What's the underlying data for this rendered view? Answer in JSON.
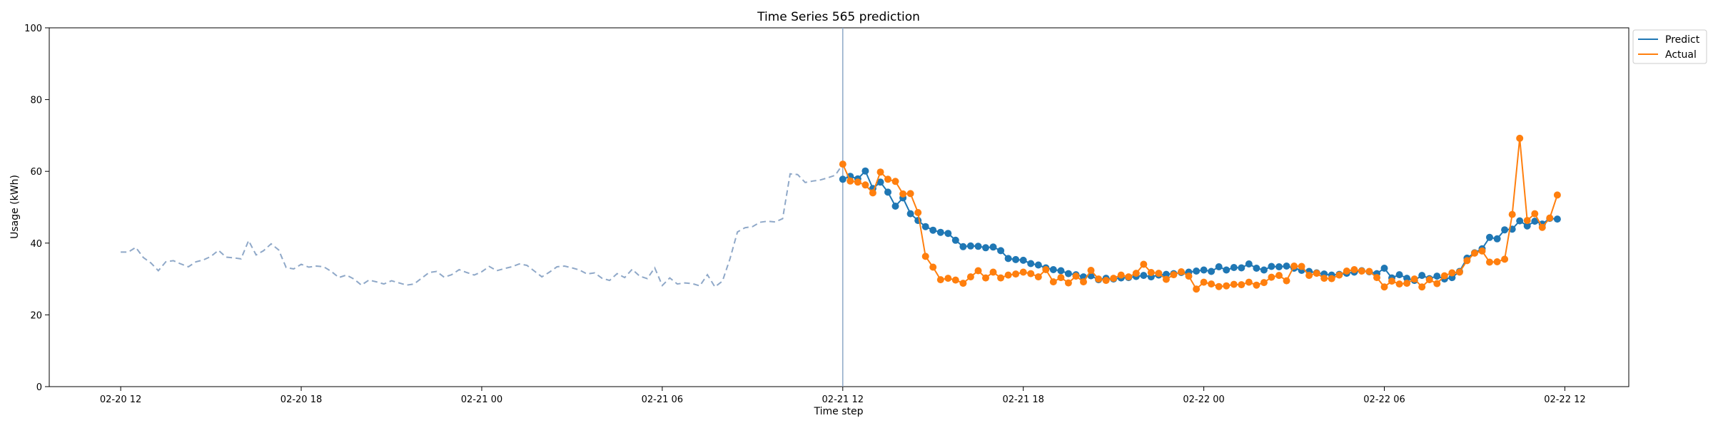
{
  "chart_data": {
    "type": "line",
    "title": "Time Series 565 prediction",
    "xlabel": "Time step",
    "ylabel": "Usage (kWh)",
    "ylim": [
      0,
      100
    ],
    "yticks": [
      0,
      20,
      40,
      60,
      80,
      100
    ],
    "xticks": [
      {
        "label": "02-20 12",
        "step": 0
      },
      {
        "label": "02-20 18",
        "step": 24
      },
      {
        "label": "02-21 00",
        "step": 48
      },
      {
        "label": "02-21 06",
        "step": 72
      },
      {
        "label": "02-21 12",
        "step": 96
      },
      {
        "label": "02-21 18",
        "step": 120
      },
      {
        "label": "02-22 00",
        "step": 144
      },
      {
        "label": "02-22 06",
        "step": 168
      },
      {
        "label": "02-22 12",
        "step": 192
      }
    ],
    "xlim_steps": [
      -9.5,
      200.5
    ],
    "forecast_start_step": 96,
    "legend_position": "outside top-right",
    "colors": {
      "predict": "#1f77b4",
      "actual": "#ff7f0e",
      "history": "#8fa8c8",
      "divider": "#8fa8c8"
    },
    "history": {
      "start_step": 0,
      "values": [
        37.5,
        37.5,
        38.8,
        36.0,
        34.5,
        32.3,
        34.8,
        35.1,
        34.2,
        33.4,
        34.8,
        35.3,
        36.3,
        38.0,
        36.1,
        35.9,
        35.6,
        40.7,
        36.7,
        37.9,
        39.8,
        38.1,
        33.2,
        32.8,
        34.1,
        33.3,
        33.6,
        33.4,
        32.1,
        30.4,
        31.1,
        30.0,
        28.3,
        29.7,
        29.2,
        28.6,
        29.5,
        28.9,
        28.3,
        28.6,
        30.2,
        31.8,
        32.1,
        30.5,
        31.2,
        32.6,
        31.8,
        31.1,
        32.0,
        33.5,
        32.3,
        32.9,
        33.4,
        34.2,
        33.8,
        32.2,
        30.6,
        31.9,
        33.4,
        33.6,
        33.1,
        32.5,
        31.4,
        31.7,
        30.2,
        29.6,
        31.5,
        30.4,
        32.7,
        30.8,
        30.1,
        33.1,
        28.2,
        30.3,
        28.6,
        28.9,
        28.7,
        28.1,
        31.2,
        27.8,
        29.4,
        35.6,
        43.1,
        44.3,
        44.6,
        45.8,
        46.1,
        45.9,
        46.8,
        59.3,
        59.1,
        56.9,
        57.3,
        57.6,
        58.2,
        58.9,
        62.0
      ]
    },
    "series": [
      {
        "name": "Predict",
        "start_step": 96,
        "values": [
          57.8,
          58.6,
          57.9,
          60.1,
          55.2,
          57.0,
          54.2,
          50.3,
          52.6,
          48.2,
          46.3,
          44.6,
          43.6,
          43.0,
          42.7,
          40.8,
          39.0,
          39.2,
          39.1,
          38.7,
          38.9,
          37.9,
          35.7,
          35.4,
          35.2,
          34.3,
          33.9,
          33.1,
          32.6,
          32.3,
          31.5,
          31.2,
          30.6,
          30.9,
          29.8,
          30.2,
          30.0,
          30.3,
          30.4,
          30.7,
          31.0,
          30.6,
          31.1,
          31.3,
          31.5,
          31.8,
          31.9,
          32.2,
          32.5,
          32.1,
          33.4,
          32.5,
          33.2,
          33.1,
          34.2,
          33.0,
          32.5,
          33.5,
          33.4,
          33.6,
          33.0,
          32.4,
          32.1,
          31.7,
          31.4,
          31.1,
          31.3,
          31.6,
          31.9,
          32.3,
          32.0,
          31.5,
          33.0,
          30.3,
          31.2,
          30.2,
          29.6,
          31.0,
          30.1,
          30.8,
          30.0,
          30.4,
          32.1,
          35.8,
          37.3,
          38.4,
          41.6,
          41.2,
          43.7,
          43.9,
          46.2,
          44.8,
          46.1,
          45.3,
          46.9,
          46.7
        ]
      },
      {
        "name": "Actual",
        "start_step": 96,
        "values": [
          62.0,
          57.3,
          57.0,
          56.2,
          54.0,
          59.8,
          57.8,
          57.2,
          53.7,
          53.8,
          48.5,
          36.3,
          33.3,
          29.8,
          30.2,
          29.7,
          28.8,
          30.6,
          32.3,
          30.3,
          31.9,
          30.3,
          31.1,
          31.4,
          31.9,
          31.5,
          30.6,
          32.6,
          29.2,
          30.4,
          28.9,
          30.8,
          29.2,
          32.4,
          30.0,
          29.6,
          30.2,
          31.1,
          30.6,
          31.6,
          34.1,
          31.8,
          31.6,
          29.9,
          31.2,
          32.0,
          30.8,
          27.2,
          29.1,
          28.6,
          27.9,
          28.1,
          28.5,
          28.4,
          29.1,
          28.3,
          29.0,
          30.5,
          31.0,
          29.5,
          33.6,
          33.5,
          31.0,
          31.6,
          30.2,
          30.1,
          31.1,
          32.2,
          32.6,
          32.2,
          32.1,
          30.4,
          27.8,
          29.4,
          28.6,
          28.8,
          30.0,
          27.8,
          29.8,
          28.7,
          30.9,
          31.7,
          31.9,
          35.1,
          37.2,
          37.8,
          34.7,
          34.8,
          35.5,
          48.0,
          69.2,
          46.3,
          48.2,
          44.4,
          47.0,
          53.4
        ]
      }
    ]
  }
}
